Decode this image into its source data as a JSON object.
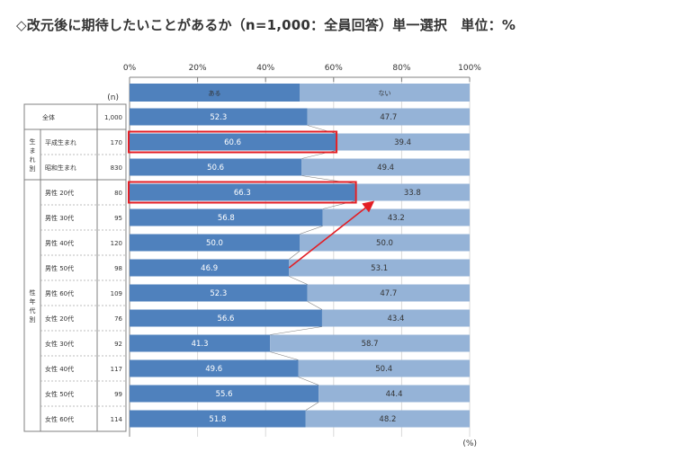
{
  "title": "◇改元後に期待したいことがあるか（n=1,000：全員回答）単一選択　単位：%",
  "colors": {
    "yes": "#4f81bd",
    "no": "#95b3d7",
    "highlight": "#e31e24",
    "arrow": "#e31e24"
  },
  "chart_data": {
    "type": "bar",
    "stacked": true,
    "orientation": "horizontal",
    "title": "◇改元後に期待したいことがあるか（n=1,000：全員回答）単一選択　単位：%",
    "xlim": [
      0,
      100
    ],
    "ticks": [
      "0%",
      "20%",
      "40%",
      "60%",
      "80%",
      "100%"
    ],
    "n_header": "(n)",
    "unit_label": "(%)",
    "legend": [
      "ある",
      "ない"
    ],
    "groups": [
      {
        "label": "",
        "rows": [
          0
        ]
      },
      {
        "label": "生まれ別",
        "rows": [
          1,
          2
        ]
      },
      {
        "label": "性年代別",
        "rows": [
          3,
          4,
          5,
          6,
          7,
          8,
          9,
          10,
          11,
          12
        ]
      }
    ],
    "rows": [
      {
        "label": "全体",
        "n": "1,000",
        "yes": 52.3,
        "no": 47.7
      },
      {
        "label": "平成生まれ",
        "n": "170",
        "yes": 60.6,
        "no": 39.4,
        "highlight": true
      },
      {
        "label": "昭和生まれ",
        "n": "830",
        "yes": 50.6,
        "no": 49.4
      },
      {
        "label": "男性 20代",
        "n": "80",
        "yes": 66.3,
        "no": 33.8,
        "highlight": true
      },
      {
        "label": "男性 30代",
        "n": "95",
        "yes": 56.8,
        "no": 43.2
      },
      {
        "label": "男性 40代",
        "n": "120",
        "yes": 50.0,
        "no": 50.0
      },
      {
        "label": "男性 50代",
        "n": "98",
        "yes": 46.9,
        "no": 53.1
      },
      {
        "label": "男性 60代",
        "n": "109",
        "yes": 52.3,
        "no": 47.7
      },
      {
        "label": "女性 20代",
        "n": "76",
        "yes": 56.6,
        "no": 43.4
      },
      {
        "label": "女性 30代",
        "n": "92",
        "yes": 41.3,
        "no": 58.7
      },
      {
        "label": "女性 40代",
        "n": "117",
        "yes": 49.6,
        "no": 50.4
      },
      {
        "label": "女性 50代",
        "n": "99",
        "yes": 55.6,
        "no": 44.4
      },
      {
        "label": "女性 60代",
        "n": "114",
        "yes": 51.8,
        "no": 48.2
      }
    ],
    "arrow": {
      "from_row": 6,
      "to_row": 3
    }
  }
}
